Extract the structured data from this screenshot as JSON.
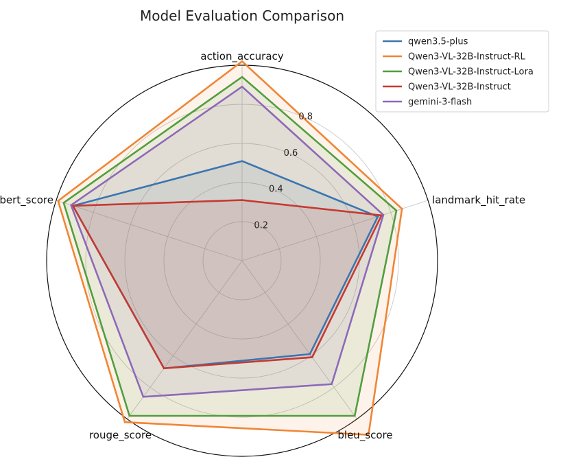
{
  "chart_data": {
    "type": "radar",
    "title": "Model Evaluation Comparison",
    "axes": [
      "action_accuracy",
      "landmark_hit_rate",
      "bleu_score",
      "rouge_score",
      "bert_score"
    ],
    "rlim": [
      0,
      1.0
    ],
    "rticks": [
      0.2,
      0.4,
      0.6,
      0.8
    ],
    "rtick_labels": [
      "0.2",
      "0.4",
      "0.6",
      "0.8"
    ],
    "grid": true,
    "legend_position": "top-right",
    "series": [
      {
        "name": "qwen3.5-plus",
        "color": "#3b75af",
        "values": [
          0.51,
          0.73,
          0.59,
          0.68,
          0.91
        ]
      },
      {
        "name": "Qwen3-VL-32B-Instruct-RL",
        "color": "#ef8636",
        "values": [
          1.02,
          0.86,
          1.1,
          1.02,
          0.99
        ]
      },
      {
        "name": "Qwen3-VL-32B-Instruct-Lora",
        "color": "#519e3e",
        "values": [
          0.94,
          0.83,
          0.98,
          0.98,
          0.96
        ]
      },
      {
        "name": "Qwen3-VL-32B-Instruct",
        "color": "#c53a32",
        "values": [
          0.31,
          0.75,
          0.61,
          0.68,
          0.91
        ]
      },
      {
        "name": "gemini-3-flash",
        "color": "#8d69b8",
        "values": [
          0.89,
          0.76,
          0.78,
          0.86,
          0.92
        ]
      }
    ]
  }
}
